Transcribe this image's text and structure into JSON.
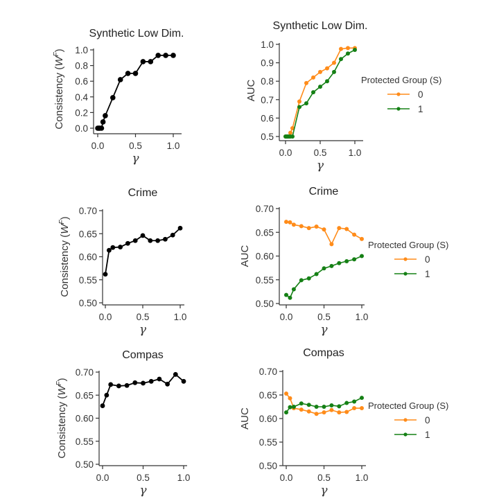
{
  "colors": {
    "black": "#000000",
    "group0": "#ff8c1a",
    "group1": "#158015"
  },
  "legend": {
    "title": "Protected Group (S)",
    "entries": [
      "0",
      "1"
    ]
  },
  "chart_data": [
    {
      "type": "line",
      "title": "Synthetic Low Dim.",
      "xlabel": "γ",
      "ylabel": "Consistency (W^F)",
      "xlim": [
        0,
        1
      ],
      "ylim": [
        0,
        1
      ],
      "xticks": [
        "0.0",
        "0.5",
        "1.0"
      ],
      "yticks": [
        "0.0",
        "0.2",
        "0.4",
        "0.6",
        "0.8",
        "1.0"
      ],
      "yticks_values": [
        0,
        0.2,
        0.4,
        0.6,
        0.8,
        1.0
      ],
      "series": [
        {
          "name": "consistency",
          "color": "black",
          "x": [
            0,
            0.01,
            0.02,
            0.03,
            0.05,
            0.07,
            0.1,
            0.2,
            0.3,
            0.4,
            0.5,
            0.6,
            0.7,
            0.8,
            0.9,
            1.0
          ],
          "y": [
            0,
            0,
            0,
            0,
            0,
            0.08,
            0.16,
            0.39,
            0.62,
            0.7,
            0.7,
            0.85,
            0.85,
            0.93,
            0.93,
            0.93
          ]
        }
      ]
    },
    {
      "type": "line",
      "title": "Synthetic Low Dim.",
      "xlabel": "γ",
      "ylabel": "AUC",
      "xlim": [
        0,
        1
      ],
      "ylim": [
        0.5,
        1.0
      ],
      "xticks": [
        "0.0",
        "0.5",
        "1.0"
      ],
      "yticks": [
        "0.5",
        "0.6",
        "0.7",
        "0.8",
        "0.9",
        "1.0"
      ],
      "yticks_values": [
        0.5,
        0.6,
        0.7,
        0.8,
        0.9,
        1.0
      ],
      "legend": true,
      "series": [
        {
          "name": "0",
          "color": "group0",
          "x": [
            0,
            0.01,
            0.02,
            0.03,
            0.05,
            0.07,
            0.1,
            0.2,
            0.3,
            0.4,
            0.5,
            0.6,
            0.7,
            0.8,
            0.9,
            1.0
          ],
          "y": [
            0.5,
            0.5,
            0.5,
            0.5,
            0.5,
            0.52,
            0.545,
            0.69,
            0.79,
            0.82,
            0.85,
            0.87,
            0.9,
            0.975,
            0.98,
            0.98
          ]
        },
        {
          "name": "1",
          "color": "group1",
          "x": [
            0,
            0.01,
            0.02,
            0.03,
            0.05,
            0.07,
            0.1,
            0.2,
            0.3,
            0.4,
            0.5,
            0.6,
            0.7,
            0.8,
            0.9,
            1.0
          ],
          "y": [
            0.5,
            0.5,
            0.5,
            0.5,
            0.5,
            0.5,
            0.5,
            0.66,
            0.68,
            0.74,
            0.77,
            0.8,
            0.85,
            0.92,
            0.95,
            0.97
          ]
        }
      ]
    },
    {
      "type": "line",
      "title": "Crime",
      "xlabel": "γ",
      "ylabel": "Consistency (W^F)",
      "xlim": [
        0,
        1
      ],
      "ylim": [
        0.5,
        0.7
      ],
      "xticks": [
        "0.0",
        "0.5",
        "1.0"
      ],
      "yticks": [
        "0.50",
        "0.55",
        "0.60",
        "0.65",
        "0.70"
      ],
      "yticks_values": [
        0.5,
        0.55,
        0.6,
        0.65,
        0.7
      ],
      "series": [
        {
          "name": "consistency",
          "color": "black",
          "x": [
            0,
            0.05,
            0.1,
            0.2,
            0.3,
            0.4,
            0.5,
            0.6,
            0.7,
            0.8,
            0.9,
            1.0
          ],
          "y": [
            0.562,
            0.614,
            0.62,
            0.621,
            0.629,
            0.635,
            0.646,
            0.635,
            0.635,
            0.638,
            0.647,
            0.662
          ]
        }
      ]
    },
    {
      "type": "line",
      "title": "Crime",
      "xlabel": "γ",
      "ylabel": "AUC",
      "xlim": [
        0,
        1
      ],
      "ylim": [
        0.5,
        0.7
      ],
      "xticks": [
        "0.0",
        "0.5",
        "1.0"
      ],
      "yticks": [
        "0.50",
        "0.55",
        "0.60",
        "0.65",
        "0.70"
      ],
      "yticks_values": [
        0.5,
        0.55,
        0.6,
        0.65,
        0.7
      ],
      "legend": true,
      "series": [
        {
          "name": "0",
          "color": "group0",
          "x": [
            0,
            0.05,
            0.1,
            0.2,
            0.3,
            0.4,
            0.5,
            0.6,
            0.7,
            0.8,
            0.9,
            1.0
          ],
          "y": [
            0.672,
            0.671,
            0.666,
            0.663,
            0.659,
            0.662,
            0.656,
            0.625,
            0.659,
            0.657,
            0.645,
            0.636
          ]
        },
        {
          "name": "1",
          "color": "group1",
          "x": [
            0,
            0.05,
            0.1,
            0.2,
            0.3,
            0.4,
            0.5,
            0.6,
            0.7,
            0.8,
            0.9,
            1.0
          ],
          "y": [
            0.518,
            0.512,
            0.53,
            0.549,
            0.553,
            0.562,
            0.574,
            0.579,
            0.585,
            0.589,
            0.593,
            0.6
          ]
        }
      ]
    },
    {
      "type": "line",
      "title": "Compas",
      "xlabel": "γ",
      "ylabel": "Consistency (W^F)",
      "xlim": [
        0,
        1
      ],
      "ylim": [
        0.5,
        0.7
      ],
      "xticks": [
        "0.0",
        "0.5",
        "1.0"
      ],
      "yticks": [
        "0.50",
        "0.55",
        "0.60",
        "0.65",
        "0.70"
      ],
      "yticks_values": [
        0.5,
        0.55,
        0.6,
        0.65,
        0.7
      ],
      "series": [
        {
          "name": "consistency",
          "color": "black",
          "x": [
            0,
            0.05,
            0.1,
            0.2,
            0.3,
            0.4,
            0.5,
            0.6,
            0.7,
            0.8,
            0.9,
            1.0
          ],
          "y": [
            0.627,
            0.65,
            0.673,
            0.67,
            0.671,
            0.677,
            0.676,
            0.68,
            0.685,
            0.674,
            0.695,
            0.68
          ]
        }
      ]
    },
    {
      "type": "line",
      "title": "Compas",
      "xlabel": "γ",
      "ylabel": "AUC",
      "xlim": [
        0,
        1
      ],
      "ylim": [
        0.5,
        0.7
      ],
      "xticks": [
        "0.0",
        "0.5",
        "1.0"
      ],
      "yticks": [
        "0.50",
        "0.55",
        "0.60",
        "0.65",
        "0.70"
      ],
      "yticks_values": [
        0.5,
        0.55,
        0.6,
        0.65,
        0.7
      ],
      "legend": true,
      "series": [
        {
          "name": "0",
          "color": "group0",
          "x": [
            0,
            0.05,
            0.1,
            0.2,
            0.3,
            0.4,
            0.5,
            0.6,
            0.7,
            0.8,
            0.9,
            1.0
          ],
          "y": [
            0.653,
            0.643,
            0.622,
            0.619,
            0.615,
            0.61,
            0.613,
            0.618,
            0.613,
            0.614,
            0.622,
            0.622
          ]
        },
        {
          "name": "1",
          "color": "group1",
          "x": [
            0,
            0.05,
            0.1,
            0.2,
            0.3,
            0.4,
            0.5,
            0.6,
            0.7,
            0.8,
            0.9,
            1.0
          ],
          "y": [
            0.613,
            0.624,
            0.625,
            0.632,
            0.629,
            0.625,
            0.625,
            0.628,
            0.626,
            0.633,
            0.636,
            0.644
          ]
        }
      ]
    }
  ]
}
